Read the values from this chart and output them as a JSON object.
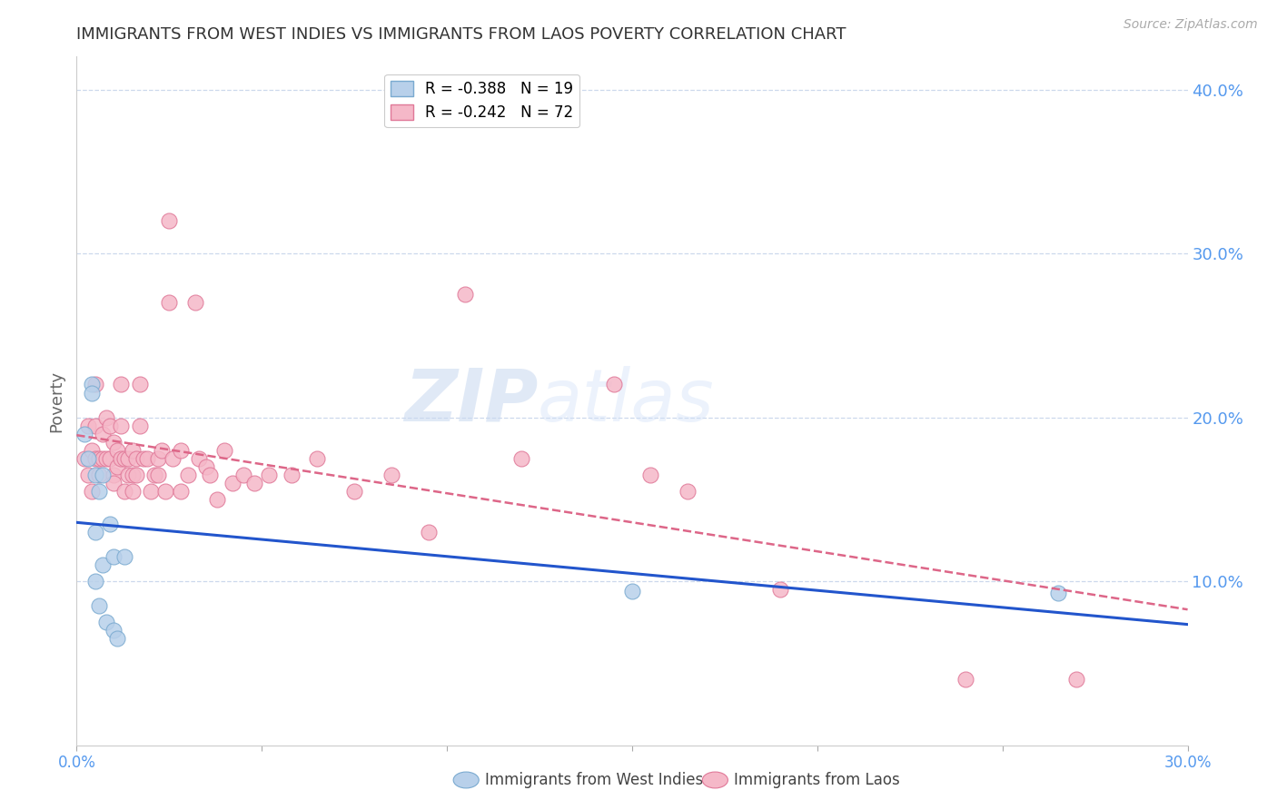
{
  "title": "IMMIGRANTS FROM WEST INDIES VS IMMIGRANTS FROM LAOS POVERTY CORRELATION CHART",
  "source": "Source: ZipAtlas.com",
  "ylabel": "Poverty",
  "xlim": [
    0.0,
    0.3
  ],
  "ylim": [
    0.0,
    0.42
  ],
  "y_ticks_right": [
    0.1,
    0.2,
    0.3,
    0.4
  ],
  "y_tick_labels_right": [
    "10.0%",
    "20.0%",
    "30.0%",
    "40.0%"
  ],
  "watermark_zip": "ZIP",
  "watermark_atlas": "atlas",
  "series1_color": "#b8d0ea",
  "series2_color": "#f5b8c8",
  "series1_edge": "#7aaad0",
  "series2_edge": "#e07898",
  "line1_color": "#2255cc",
  "line2_color": "#dd6688",
  "background_color": "#ffffff",
  "grid_color": "#ccd8ec",
  "title_color": "#333333",
  "right_axis_color": "#5599ee",
  "axis_label_color": "#5599ee",
  "west_indies_x": [
    0.002,
    0.003,
    0.004,
    0.004,
    0.005,
    0.005,
    0.005,
    0.006,
    0.006,
    0.007,
    0.007,
    0.008,
    0.009,
    0.01,
    0.01,
    0.011,
    0.013,
    0.15,
    0.265
  ],
  "west_indies_y": [
    0.19,
    0.175,
    0.22,
    0.215,
    0.165,
    0.13,
    0.1,
    0.155,
    0.085,
    0.165,
    0.11,
    0.075,
    0.135,
    0.115,
    0.07,
    0.065,
    0.115,
    0.094,
    0.093
  ],
  "laos_x": [
    0.002,
    0.003,
    0.003,
    0.004,
    0.004,
    0.005,
    0.005,
    0.005,
    0.006,
    0.006,
    0.007,
    0.007,
    0.008,
    0.008,
    0.009,
    0.009,
    0.01,
    0.01,
    0.01,
    0.011,
    0.011,
    0.012,
    0.012,
    0.012,
    0.013,
    0.013,
    0.014,
    0.014,
    0.015,
    0.015,
    0.015,
    0.016,
    0.016,
    0.017,
    0.017,
    0.018,
    0.019,
    0.02,
    0.021,
    0.022,
    0.022,
    0.023,
    0.024,
    0.025,
    0.025,
    0.026,
    0.028,
    0.028,
    0.03,
    0.032,
    0.033,
    0.035,
    0.036,
    0.038,
    0.04,
    0.042,
    0.045,
    0.048,
    0.052,
    0.058,
    0.065,
    0.075,
    0.085,
    0.095,
    0.105,
    0.12,
    0.145,
    0.155,
    0.165,
    0.19,
    0.24,
    0.27
  ],
  "laos_y": [
    0.175,
    0.195,
    0.165,
    0.18,
    0.155,
    0.195,
    0.22,
    0.175,
    0.175,
    0.165,
    0.175,
    0.19,
    0.2,
    0.175,
    0.195,
    0.175,
    0.185,
    0.165,
    0.16,
    0.18,
    0.17,
    0.22,
    0.195,
    0.175,
    0.175,
    0.155,
    0.165,
    0.175,
    0.18,
    0.165,
    0.155,
    0.175,
    0.165,
    0.22,
    0.195,
    0.175,
    0.175,
    0.155,
    0.165,
    0.175,
    0.165,
    0.18,
    0.155,
    0.27,
    0.32,
    0.175,
    0.18,
    0.155,
    0.165,
    0.27,
    0.175,
    0.17,
    0.165,
    0.15,
    0.18,
    0.16,
    0.165,
    0.16,
    0.165,
    0.165,
    0.175,
    0.155,
    0.165,
    0.13,
    0.275,
    0.175,
    0.22,
    0.165,
    0.155,
    0.095,
    0.04,
    0.04
  ]
}
